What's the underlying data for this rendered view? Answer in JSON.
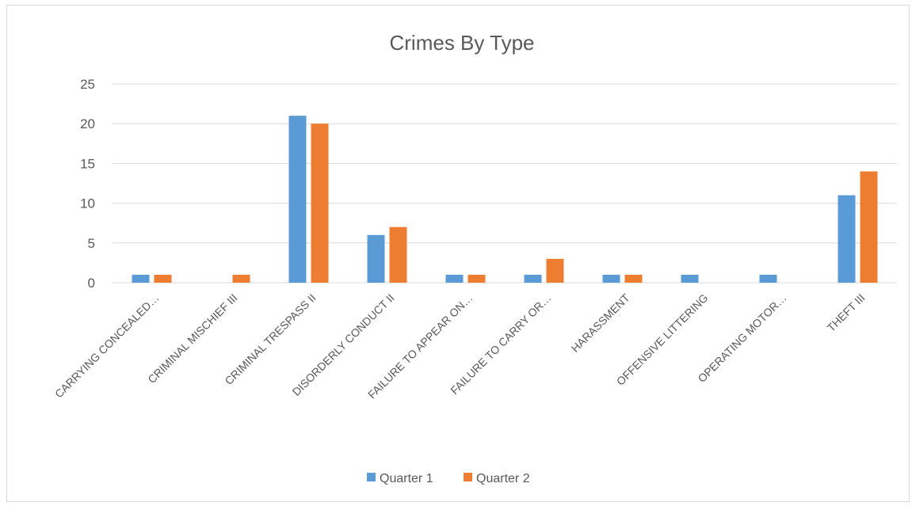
{
  "chart_data": {
    "type": "bar",
    "title": "Crimes By Type",
    "xlabel": "",
    "ylabel": "",
    "ylim": [
      0,
      25
    ],
    "yticks": [
      0,
      5,
      10,
      15,
      20,
      25
    ],
    "grid": true,
    "legend_position": "bottom",
    "categories": [
      "CARRYING CONCEALED…",
      "CRIMINAL MISCHIEF III",
      "CRIMINAL TRESPASS II",
      "DISORDERLY CONDUCT II",
      "FAILURE TO APPEAR ON…",
      "FAILURE TO CARRY OR…",
      "HARASSMENT",
      "OFFENSIVE LITTERING",
      "OPERATING MOTOR…",
      "THEFT III"
    ],
    "series": [
      {
        "name": "Quarter 1",
        "color": "#5b9bd5",
        "values": [
          1,
          0,
          21,
          6,
          1,
          1,
          1,
          1,
          1,
          11
        ]
      },
      {
        "name": "Quarter 2",
        "color": "#ed7d31",
        "values": [
          1,
          1,
          20,
          7,
          1,
          3,
          1,
          0,
          0,
          14
        ]
      }
    ]
  }
}
